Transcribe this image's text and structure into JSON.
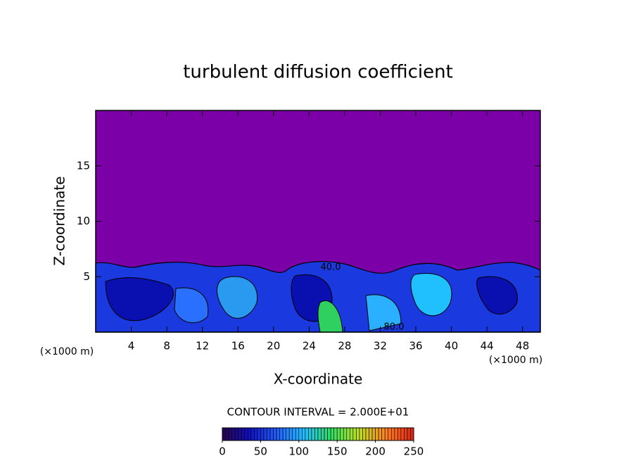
{
  "chart_data": {
    "type": "contour",
    "title": "turbulent diffusion coefficient",
    "xlabel": "X-coordinate",
    "ylabel": "Z-coordinate",
    "xlabel_unit": "(×1000 m)",
    "ylabel_unit": "(×1000 m)",
    "xlim": [
      0,
      50
    ],
    "ylim": [
      0,
      20
    ],
    "xticks": [
      4,
      8,
      12,
      16,
      20,
      24,
      28,
      32,
      36,
      40,
      44,
      48
    ],
    "yticks": [
      5,
      10,
      15
    ],
    "background_color": "#7b00a8",
    "contour_labels": [
      "40.0",
      "80.0"
    ],
    "contour_interval_text": "CONTOUR INTERVAL = 2.000E+01",
    "clim": [
      0,
      250
    ],
    "cticks": [
      0,
      50,
      100,
      150,
      200,
      250
    ],
    "colormap": [
      "#2a0050",
      "#1010c0",
      "#2060ff",
      "#20c0ff",
      "#30e060",
      "#c0e020",
      "#ff8020",
      "#e02010"
    ]
  }
}
